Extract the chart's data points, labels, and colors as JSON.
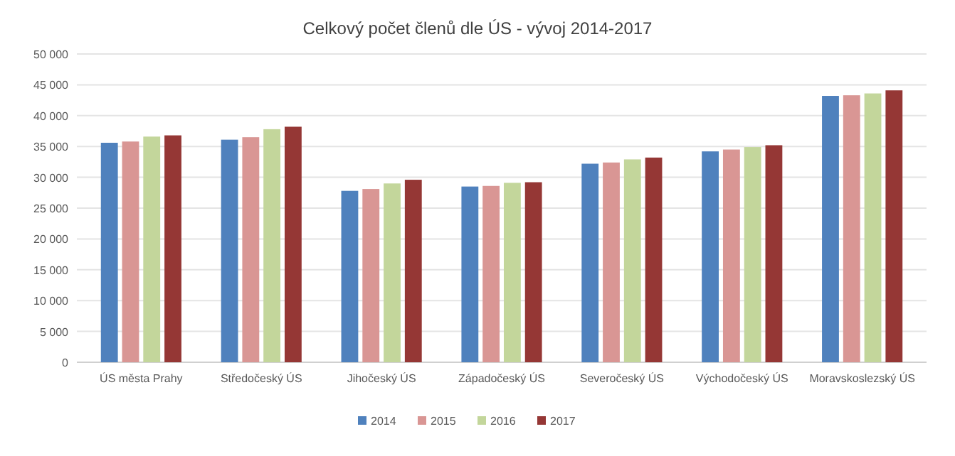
{
  "chart_data": {
    "type": "bar",
    "title": "Celkový počet členů dle ÚS - vývoj 2014-2017",
    "categories": [
      "ÚS města Prahy",
      "Středočeský ÚS",
      "Jihočeský ÚS",
      "Západočeský ÚS",
      "Severočeský ÚS",
      "Východočeský ÚS",
      "Moravskoslezský ÚS"
    ],
    "series": [
      {
        "name": "2014",
        "color": "#4f81bd",
        "values": [
          35600,
          36100,
          27800,
          28500,
          32200,
          34200,
          43200
        ]
      },
      {
        "name": "2015",
        "color": "#d99694",
        "values": [
          35800,
          36500,
          28100,
          28600,
          32400,
          34500,
          43300
        ]
      },
      {
        "name": "2016",
        "color": "#c3d69b",
        "values": [
          36600,
          37800,
          29000,
          29100,
          32900,
          34900,
          43600
        ]
      },
      {
        "name": "2017",
        "color": "#953735",
        "values": [
          36800,
          38200,
          29600,
          29200,
          33200,
          35200,
          44100
        ]
      }
    ],
    "ylim": [
      0,
      50000
    ],
    "yticks": [
      {
        "value": 0,
        "label": "0"
      },
      {
        "value": 5000,
        "label": "5 000"
      },
      {
        "value": 10000,
        "label": "10 000"
      },
      {
        "value": 15000,
        "label": "15 000"
      },
      {
        "value": 20000,
        "label": "20 000"
      },
      {
        "value": 25000,
        "label": "25 000"
      },
      {
        "value": 30000,
        "label": "30 000"
      },
      {
        "value": 35000,
        "label": "35 000"
      },
      {
        "value": 40000,
        "label": "40 000"
      },
      {
        "value": 45000,
        "label": "45 000"
      },
      {
        "value": 50000,
        "label": "50 000"
      }
    ],
    "grid": "y",
    "legend": "bottom"
  }
}
